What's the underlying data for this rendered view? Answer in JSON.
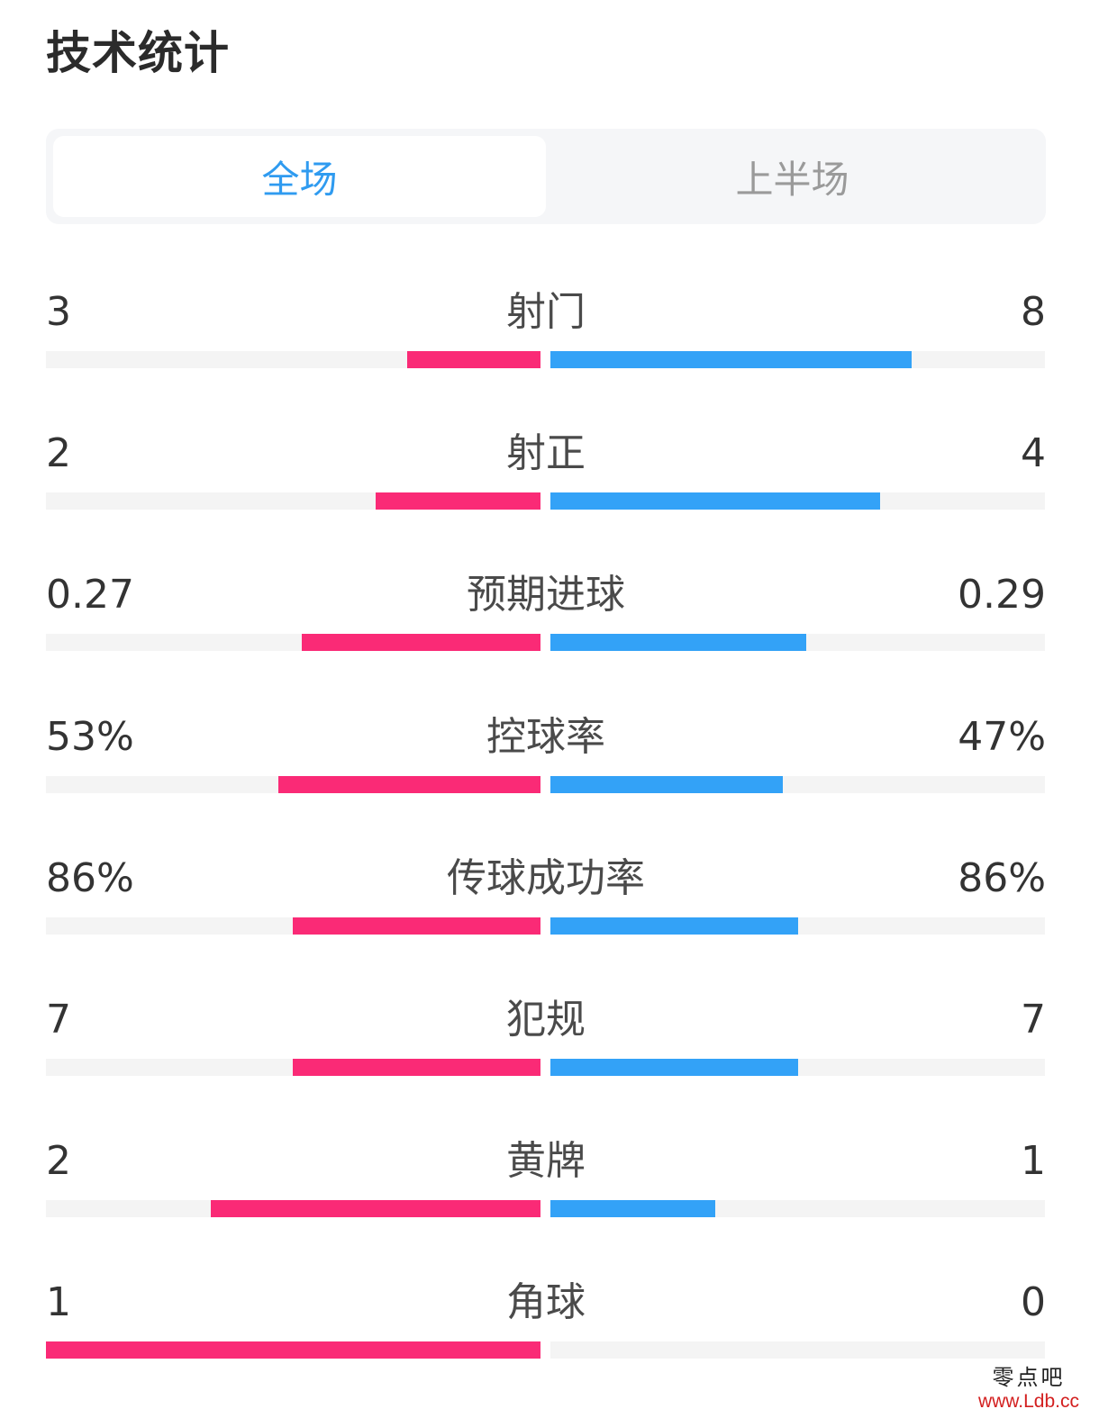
{
  "title": "技术统计",
  "tabs": [
    {
      "label": "全场",
      "active": true
    },
    {
      "label": "上半场",
      "active": false
    }
  ],
  "colors": {
    "home": "#fa2a76",
    "away": "#33a2f7",
    "active_tab": "#2f9bf0",
    "track": "#f4f4f4"
  },
  "stats": [
    {
      "label": "射门",
      "home": "3",
      "away": "8",
      "home_fraction": 0.27,
      "away_fraction": 0.73
    },
    {
      "label": "射正",
      "home": "2",
      "away": "4",
      "home_fraction": 0.333,
      "away_fraction": 0.667
    },
    {
      "label": "预期进球",
      "home": "0.27",
      "away": "0.29",
      "home_fraction": 0.482,
      "away_fraction": 0.518
    },
    {
      "label": "控球率",
      "home": "53%",
      "away": "47%",
      "home_fraction": 0.53,
      "away_fraction": 0.47
    },
    {
      "label": "传球成功率",
      "home": "86%",
      "away": "86%",
      "home_fraction": 0.5,
      "away_fraction": 0.5
    },
    {
      "label": "犯规",
      "home": "7",
      "away": "7",
      "home_fraction": 0.5,
      "away_fraction": 0.5
    },
    {
      "label": "黄牌",
      "home": "2",
      "away": "1",
      "home_fraction": 0.667,
      "away_fraction": 0.333
    },
    {
      "label": "角球",
      "home": "1",
      "away": "0",
      "home_fraction": 1.0,
      "away_fraction": 0.0
    }
  ],
  "watermark": {
    "text": "零点吧",
    "url": "www.Ldb.cc"
  }
}
